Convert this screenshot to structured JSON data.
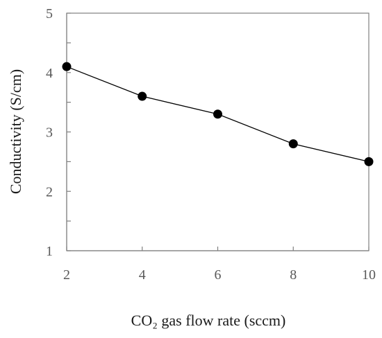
{
  "chart_data": {
    "type": "line",
    "title": "",
    "xlabel": "CO₂ gas flow rate (sccm)",
    "ylabel": "Conductivity (S/cm)",
    "x": [
      2,
      4,
      6,
      8,
      10
    ],
    "series": [
      {
        "values": [
          4.1,
          3.6,
          3.3,
          2.8,
          2.5
        ],
        "marker": "filled-circle"
      }
    ],
    "xlim": [
      2,
      10
    ],
    "ylim": [
      1,
      5
    ],
    "xticks": [
      2,
      4,
      6,
      8,
      10
    ],
    "yticks": [
      1,
      2,
      3,
      4,
      5
    ],
    "grid": false,
    "legend": "none",
    "colors": {
      "line": "#000000",
      "marker": "#000000",
      "axis": "#808080",
      "tick_text": "#595959",
      "title_text": "#1a1a1a"
    }
  }
}
